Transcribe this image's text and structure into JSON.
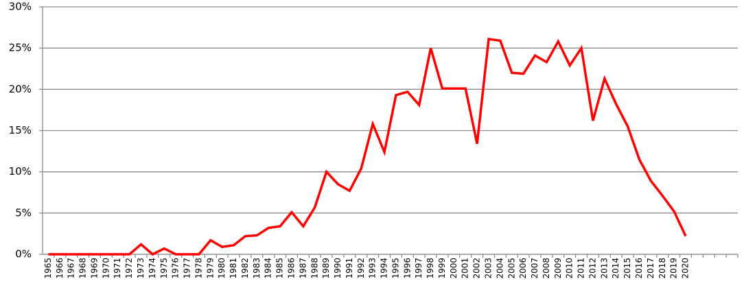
{
  "chart_data": {
    "type": "line",
    "categories": [
      "1965",
      "1966",
      "1967",
      "1968",
      "1969",
      "1970",
      "1971",
      "1972",
      "1973",
      "1974",
      "1975",
      "1976",
      "1977",
      "1978",
      "1979",
      "1980",
      "1981",
      "1982",
      "1983",
      "1984",
      "1985",
      "1986",
      "1987",
      "1988",
      "1989",
      "1990",
      "1991",
      "1992",
      "1993",
      "1994",
      "1995",
      "1996",
      "1997",
      "1998",
      "1999",
      "2000",
      "2001",
      "2002",
      "2003",
      "2004",
      "2005",
      "2006",
      "2007",
      "2008",
      "2009",
      "2010",
      "2011",
      "2012",
      "2013",
      "2014",
      "2015",
      "2016",
      "2017",
      "2018",
      "2019",
      "2020",
      null,
      null,
      null,
      null
    ],
    "values": [
      0,
      0,
      0,
      0,
      0,
      0,
      0,
      0,
      1.2,
      0,
      0.7,
      0,
      0,
      0,
      1.7,
      0.9,
      1.1,
      2.2,
      2.3,
      3.2,
      3.4,
      5.1,
      3.4,
      5.7,
      10.0,
      8.5,
      7.7,
      10.4,
      15.8,
      12.4,
      19.3,
      19.7,
      18.1,
      25.0,
      20.1,
      20.1,
      20.1,
      13.4,
      26.1,
      25.9,
      22.0,
      21.9,
      24.1,
      23.3,
      25.8,
      22.9,
      25.0,
      16.2,
      21.3,
      18.2,
      15.5,
      11.5,
      8.9,
      7.1,
      5.2,
      2.2,
      null,
      null,
      null,
      null
    ],
    "color": "#ff0000",
    "ylim": [
      0,
      30
    ],
    "yticks": [
      {
        "value": 0,
        "label": "0%"
      },
      {
        "value": 5,
        "label": "5%"
      },
      {
        "value": 10,
        "label": "10%"
      },
      {
        "value": 15,
        "label": "15%"
      },
      {
        "value": 20,
        "label": "20%"
      },
      {
        "value": 25,
        "label": "25%"
      },
      {
        "value": 30,
        "label": "30%"
      }
    ],
    "grid": true
  }
}
